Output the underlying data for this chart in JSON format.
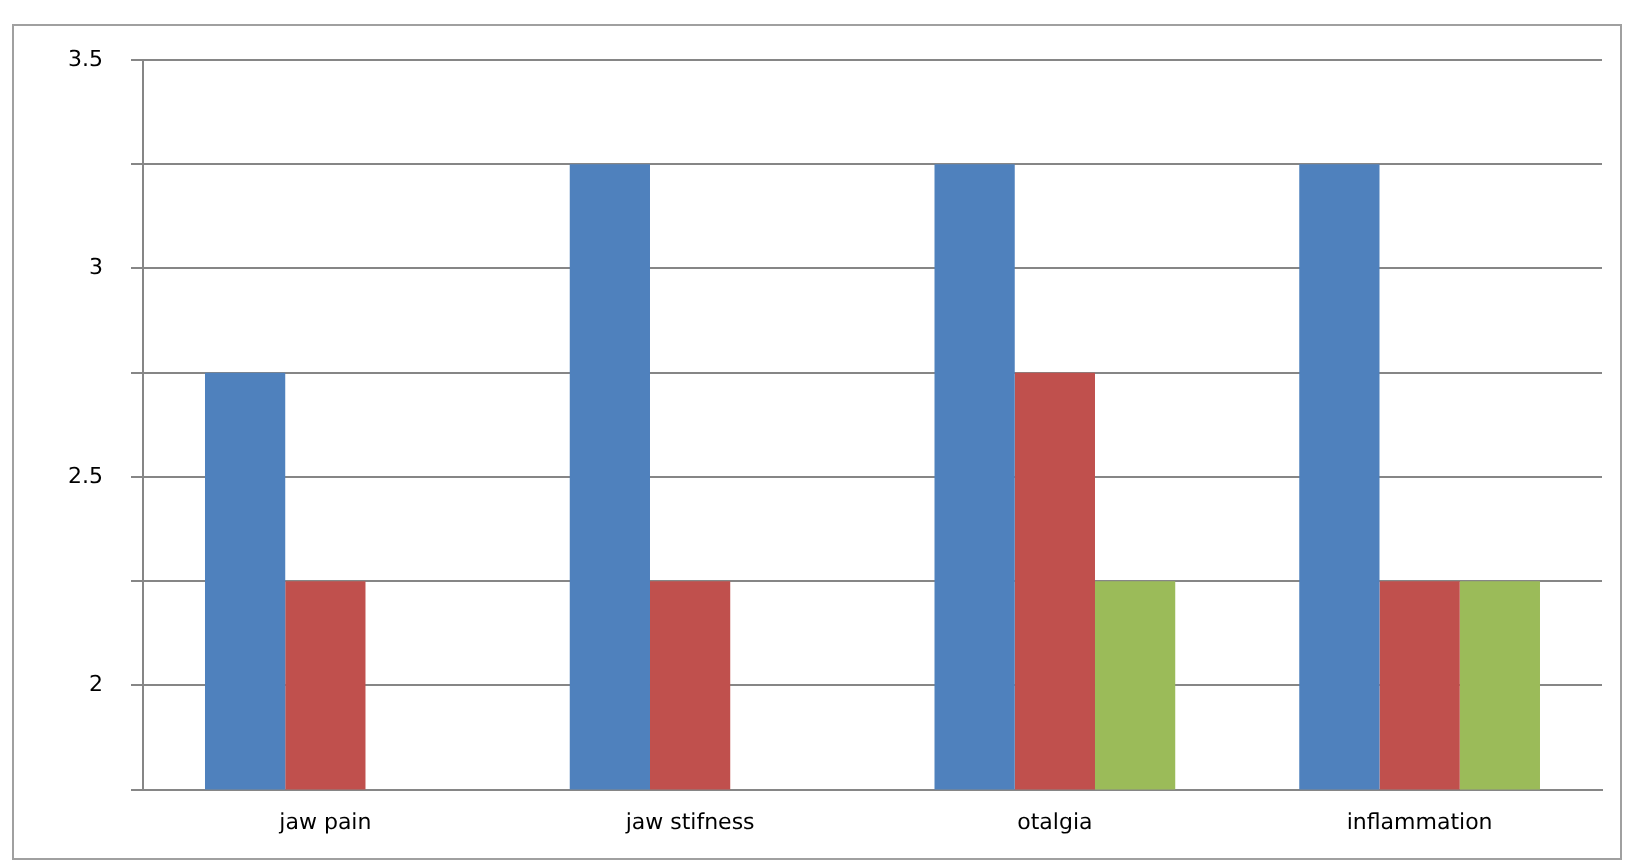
{
  "chart_data": {
    "type": "bar",
    "categories": [
      "jaw pain",
      "jaw stifness",
      "otalgia",
      "inflammation"
    ],
    "series": [
      {
        "color": "#4f81bd",
        "values": [
          2.75,
          3.25,
          3.25,
          3.25
        ]
      },
      {
        "color": "#c0504d",
        "values": [
          2.25,
          2.25,
          2.75,
          2.25
        ]
      },
      {
        "color": "#9bbb59",
        "values": [
          null,
          null,
          2.25,
          2.25
        ]
      }
    ],
    "ylim": [
      1.75,
      3.5
    ],
    "yticks": [
      {
        "value": 1.75,
        "label": null
      },
      2,
      {
        "value": 2.25,
        "label": null
      },
      2.5,
      {
        "value": 2.75,
        "label": null
      },
      3,
      {
        "value": 3.25,
        "label": null
      },
      3.5
    ],
    "grid": "y",
    "legend": false
  }
}
